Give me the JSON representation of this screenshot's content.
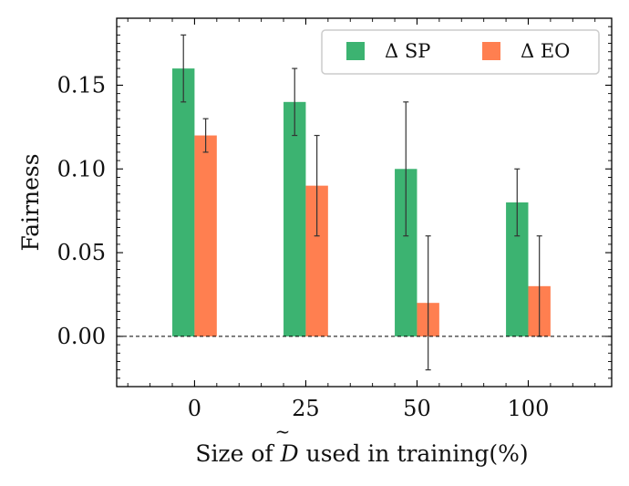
{
  "chart_data": {
    "type": "bar",
    "title": "",
    "xlabel_parts": {
      "before": "Size of ",
      "symbol": "D",
      "after": " used in training(%)"
    },
    "ylabel": "Fairness",
    "categories": [
      "0",
      "25",
      "50",
      "100"
    ],
    "ylim": [
      -0.03,
      0.19
    ],
    "yticks": [
      "0.00",
      "0.05",
      "0.10",
      "0.15"
    ],
    "ytick_values": [
      0.0,
      0.05,
      0.1,
      0.15
    ],
    "grid": false,
    "reference_line": {
      "y": 0.0,
      "style": "dashed"
    },
    "legend_position": "top-right",
    "series": [
      {
        "name": "Δ SP",
        "color": "#3cb371",
        "values": [
          0.16,
          0.14,
          0.1,
          0.08
        ],
        "error_low": [
          0.14,
          0.12,
          0.06,
          0.06
        ],
        "error_high": [
          0.18,
          0.16,
          0.14,
          0.1
        ]
      },
      {
        "name": "Δ EO",
        "color": "#ff7f50",
        "values": [
          0.12,
          0.09,
          0.02,
          0.03
        ],
        "error_low": [
          0.11,
          0.06,
          -0.02,
          0.0
        ],
        "error_high": [
          0.13,
          0.12,
          0.06,
          0.06
        ]
      }
    ]
  }
}
